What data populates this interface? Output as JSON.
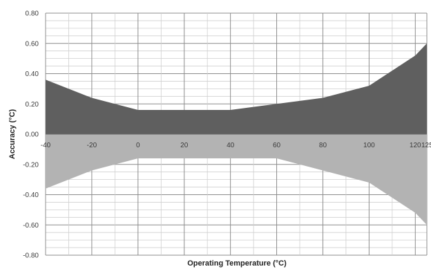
{
  "chart_data": {
    "type": "area",
    "title": "",
    "xlabel": "Operating Temperature (°C)",
    "ylabel": "Accuracy (°C)",
    "xlim": [
      -40,
      125
    ],
    "ylim": [
      -0.8,
      0.8
    ],
    "x_ticks": [
      -40,
      -20,
      0,
      20,
      40,
      60,
      80,
      100,
      120,
      125
    ],
    "x_tick_labels": [
      "-40",
      "-20",
      "0",
      "20",
      "40",
      "60",
      "80",
      "100",
      "120",
      "125"
    ],
    "y_ticks": [
      0.8,
      0.6,
      0.4,
      0.2,
      0.0,
      -0.2,
      -0.4,
      -0.6,
      -0.8
    ],
    "y_tick_labels": [
      "0.80",
      "0.60",
      "0.40",
      "0.20",
      "0.00",
      "-0.20",
      "-0.40",
      "-0.60",
      "-0.80"
    ],
    "grid": true,
    "x": [
      -40,
      -20,
      0,
      20,
      40,
      60,
      80,
      100,
      120,
      125
    ],
    "series": [
      {
        "values": [
          0.36,
          0.24,
          0.16,
          0.16,
          0.16,
          0.2,
          0.24,
          0.32,
          0.52,
          0.6
        ],
        "color": "#5f5f5f"
      },
      {
        "values": [
          -0.36,
          -0.24,
          -0.16,
          -0.16,
          -0.16,
          -0.16,
          -0.24,
          -0.32,
          -0.52,
          -0.6
        ],
        "color": "#b3b3b3"
      }
    ]
  }
}
